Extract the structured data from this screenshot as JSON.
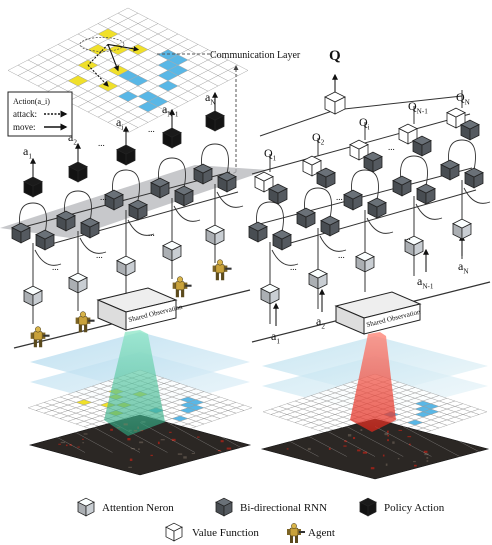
{
  "labels": {
    "communication_layer": "Communication Layer",
    "action_box_title": "Action(a_i)",
    "action_box_attack": "attack:",
    "action_box_move": "move:",
    "shared_observation_left": "Shared Observation",
    "shared_observation_right": "Shared Observation",
    "q_total": "Q",
    "ellipsis": "...",
    "left_outputs": [
      {
        "base": "a",
        "sub": "1"
      },
      {
        "base": "a",
        "sub": "2"
      },
      {
        "base": "a",
        "sub": "i"
      },
      {
        "base": "a",
        "sub": "N-1"
      },
      {
        "base": "a",
        "sub": "N"
      }
    ],
    "right_outputs": [
      {
        "base": "Q",
        "sub": "1"
      },
      {
        "base": "Q",
        "sub": "2"
      },
      {
        "base": "Q",
        "sub": "i"
      },
      {
        "base": "Q",
        "sub": "N-1"
      },
      {
        "base": "Q",
        "sub": "N"
      }
    ],
    "right_inputs": [
      {
        "base": "a",
        "sub": "1"
      },
      {
        "base": "a",
        "sub": "2"
      },
      {
        "base": "a",
        "sub": "N-1"
      },
      {
        "base": "a",
        "sub": "N"
      }
    ]
  },
  "legend": {
    "attention": "Attention Neron",
    "birnn": "Bi-directional RNN",
    "policy": "Policy Action",
    "value": "Value Function",
    "agent": "Agent"
  },
  "colors": {
    "attention_cube": "#c9ced3",
    "birnn_cube": "#555a60",
    "policy_cube": "#151515",
    "value_cube": "#ffffff",
    "comm_plane": "#b4b6b9",
    "left_beam": "#3fc69a",
    "right_beam": "#ef3a2c",
    "planes": "#cfe4f2",
    "highlight_cells": "#59b7e6",
    "agent_marker": "#f0e02a",
    "terrain": "#2b2724"
  }
}
